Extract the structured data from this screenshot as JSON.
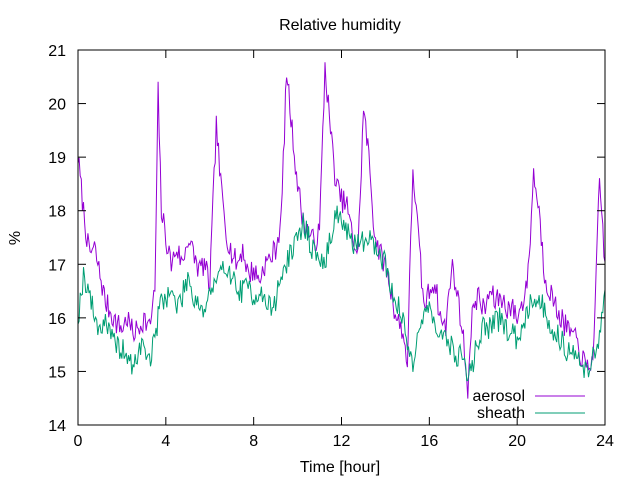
{
  "chart_data": {
    "type": "line",
    "title": "Relative humidity",
    "xlabel": "Time [hour]",
    "ylabel": "%",
    "xlim": [
      0,
      24
    ],
    "ylim": [
      14,
      21
    ],
    "xticks": [
      0,
      4,
      8,
      12,
      16,
      20,
      24
    ],
    "yticks": [
      14,
      15,
      16,
      17,
      18,
      19,
      20,
      21
    ],
    "grid": false,
    "legend_position": "bottom-right",
    "series": [
      {
        "name": "aerosol",
        "color": "#9400d3",
        "x": [
          0,
          0.25,
          0.5,
          0.75,
          1,
          1.25,
          1.5,
          1.75,
          2,
          2.25,
          2.5,
          2.75,
          3,
          3.25,
          3.5,
          3.65,
          3.8,
          4,
          4.25,
          4.5,
          4.75,
          5,
          5.25,
          5.5,
          5.75,
          6,
          6.3,
          6.5,
          6.75,
          7,
          7.25,
          7.5,
          7.75,
          8,
          8.25,
          8.5,
          8.75,
          9,
          9.25,
          9.5,
          9.75,
          10,
          10.25,
          10.5,
          10.75,
          11,
          11.25,
          11.5,
          11.75,
          12,
          12.25,
          12.5,
          12.75,
          13,
          13.25,
          13.5,
          13.75,
          14,
          14.25,
          14.5,
          14.75,
          15,
          15.25,
          15.5,
          15.75,
          16,
          16.25,
          16.5,
          16.75,
          17,
          17.25,
          17.5,
          17.75,
          18,
          18.25,
          18.5,
          18.75,
          19,
          19.25,
          19.5,
          19.75,
          20,
          20.25,
          20.5,
          20.75,
          21,
          21.25,
          21.5,
          21.75,
          22,
          22.25,
          22.5,
          22.75,
          23,
          23.25,
          23.5,
          23.75,
          24
        ],
        "values": [
          19.0,
          18.0,
          17.2,
          17.3,
          16.8,
          16.3,
          16.1,
          15.9,
          15.8,
          16.0,
          15.7,
          15.8,
          16.0,
          15.8,
          16.5,
          20.2,
          18.0,
          17.5,
          17.0,
          17.3,
          17.0,
          17.5,
          17.2,
          16.9,
          17.0,
          16.6,
          19.6,
          18.5,
          17.6,
          17.2,
          17.0,
          17.3,
          16.8,
          16.9,
          16.7,
          17.0,
          17.1,
          17.3,
          17.8,
          20.6,
          19.5,
          18.5,
          17.8,
          17.6,
          17.4,
          17.6,
          20.7,
          19.5,
          18.5,
          18.2,
          18.1,
          17.5,
          17.2,
          19.9,
          19.0,
          17.6,
          17.2,
          17.0,
          16.5,
          16.0,
          15.8,
          15.2,
          18.8,
          17.5,
          16.2,
          16.5,
          16.7,
          16.0,
          15.8,
          17.0,
          16.5,
          15.8,
          14.7,
          16.3,
          16.4,
          16.1,
          16.5,
          16.3,
          16.4,
          16.2,
          16.2,
          16.0,
          16.3,
          16.8,
          18.7,
          18.0,
          16.8,
          16.5,
          16.2,
          16.0,
          15.8,
          15.7,
          15.5,
          15.2,
          15.0,
          15.5,
          18.6,
          17.0
        ],
        "trace_seed": 7
      },
      {
        "name": "sheath",
        "color": "#009e73",
        "x": [
          0,
          0.25,
          0.5,
          0.75,
          1,
          1.25,
          1.5,
          1.75,
          2,
          2.25,
          2.5,
          2.75,
          3,
          3.25,
          3.5,
          3.75,
          4,
          4.25,
          4.5,
          4.75,
          5,
          5.25,
          5.5,
          5.75,
          6,
          6.25,
          6.5,
          6.75,
          7,
          7.25,
          7.5,
          7.75,
          8,
          8.25,
          8.5,
          8.75,
          9,
          9.25,
          9.5,
          9.75,
          10,
          10.25,
          10.5,
          10.75,
          11,
          11.25,
          11.5,
          11.75,
          12,
          12.25,
          12.5,
          12.75,
          13,
          13.25,
          13.5,
          13.75,
          14,
          14.25,
          14.5,
          14.75,
          15,
          15.25,
          15.5,
          15.75,
          16,
          16.25,
          16.5,
          16.75,
          17,
          17.25,
          17.5,
          17.75,
          18,
          18.25,
          18.5,
          18.75,
          19,
          19.25,
          19.5,
          19.75,
          20,
          20.25,
          20.5,
          20.75,
          21,
          21.25,
          21.5,
          21.75,
          22,
          22.25,
          22.5,
          22.75,
          23,
          23.25,
          23.5,
          23.75,
          24
        ],
        "values": [
          16.0,
          16.8,
          16.5,
          16.0,
          15.8,
          16.0,
          15.6,
          15.5,
          15.4,
          15.3,
          15.0,
          15.4,
          15.5,
          15.2,
          15.6,
          16.3,
          16.4,
          16.5,
          16.2,
          16.4,
          16.8,
          16.4,
          16.3,
          16.1,
          16.5,
          16.6,
          16.8,
          17.0,
          16.8,
          16.5,
          16.5,
          16.6,
          16.4,
          16.5,
          16.3,
          16.2,
          16.3,
          16.8,
          17.0,
          17.3,
          17.4,
          17.8,
          17.5,
          17.2,
          17.1,
          17.0,
          17.5,
          18.0,
          17.8,
          17.6,
          17.3,
          17.5,
          17.4,
          17.6,
          17.3,
          17.2,
          17.0,
          16.6,
          16.3,
          16.0,
          15.5,
          15.2,
          15.8,
          16.0,
          16.2,
          16.0,
          15.6,
          15.6,
          15.5,
          15.2,
          15.4,
          14.8,
          15.2,
          15.6,
          15.9,
          15.8,
          15.9,
          16.0,
          15.8,
          15.7,
          15.6,
          15.9,
          16.2,
          16.4,
          16.3,
          16.2,
          15.8,
          15.7,
          15.6,
          15.4,
          15.5,
          15.2,
          15.0,
          15.1,
          15.3,
          15.6,
          16.5
        ],
        "trace_seed": 19
      }
    ]
  }
}
